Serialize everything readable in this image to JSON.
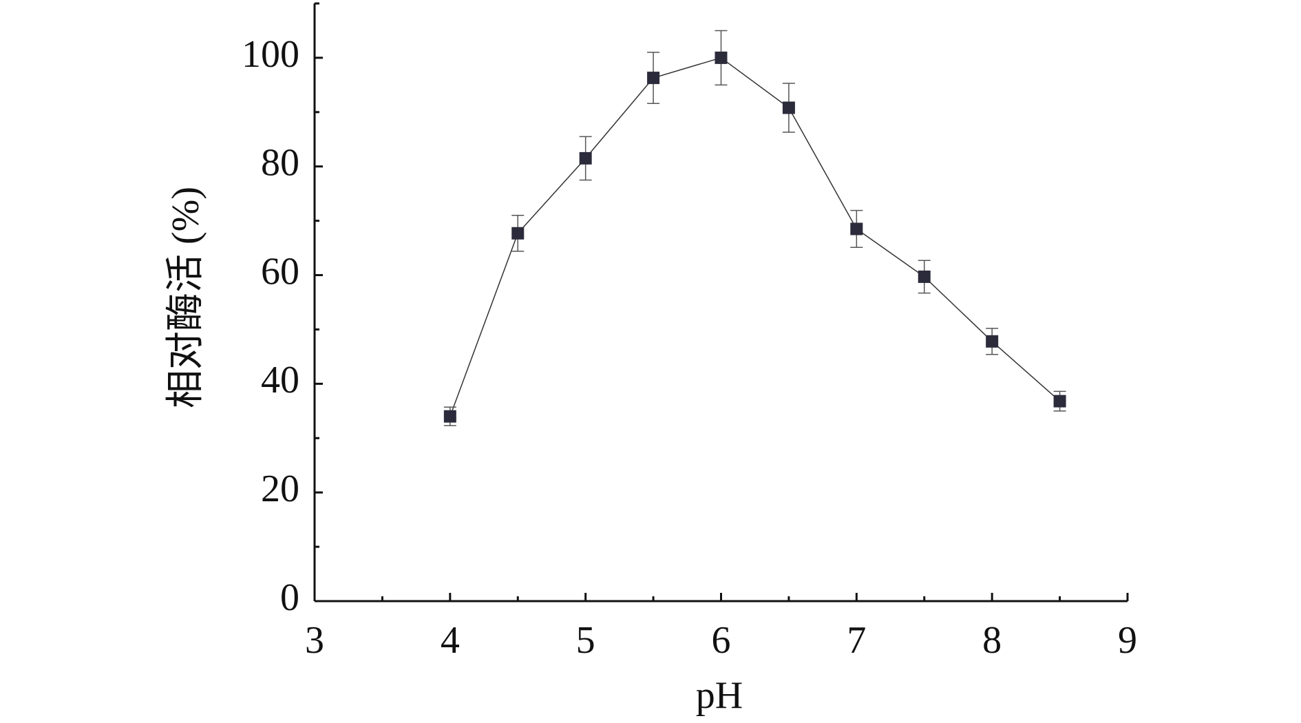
{
  "chart_data": {
    "type": "line",
    "x_label": "pH",
    "y_label": "相对酶活 (%)",
    "x": [
      4,
      4.5,
      5,
      5.5,
      6,
      6.5,
      7,
      7.5,
      8,
      8.5
    ],
    "values": [
      34,
      67.7,
      81.5,
      96.3,
      100,
      90.8,
      68.5,
      59.7,
      47.8,
      36.8
    ],
    "errors": [
      1.7,
      3.3,
      4,
      4.7,
      5,
      4.5,
      3.4,
      3,
      2.4,
      1.8
    ],
    "color": "#2b2b3b",
    "xlim": [
      3,
      9
    ],
    "xticks": [
      3,
      4,
      5,
      6,
      7,
      8,
      9
    ],
    "xminor_ticks": [
      3.5,
      4.5,
      5.5,
      6.5,
      7.5,
      8.5
    ],
    "ylim": [
      0,
      110
    ],
    "yticks": [
      0,
      20,
      40,
      60,
      80,
      100
    ],
    "yminor_ticks": [
      10,
      30,
      50,
      70,
      90,
      110
    ]
  }
}
